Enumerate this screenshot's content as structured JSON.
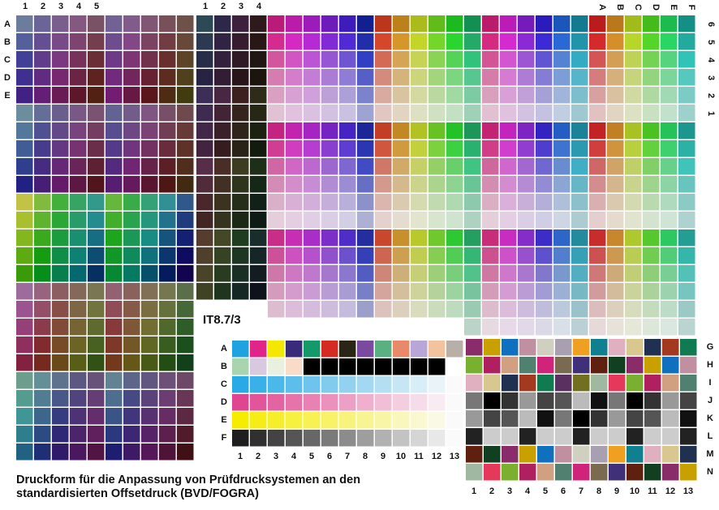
{
  "top_left_columns": [
    "1",
    "2",
    "3",
    "4",
    "5"
  ],
  "top_middle_columns": [
    "1",
    "2",
    "3",
    "4"
  ],
  "top_right_columns": [
    "A",
    "B",
    "C",
    "D",
    "E",
    "F"
  ],
  "left_rows": [
    "A",
    "B",
    "C",
    "D",
    "E"
  ],
  "right_rows": [
    "6",
    "5",
    "4",
    "3",
    "2",
    "1"
  ],
  "target_name": "IT8.7/3",
  "target_rows": [
    "A",
    "B",
    "C",
    "D",
    "E",
    "F"
  ],
  "target_columns": [
    "1",
    "2",
    "3",
    "4",
    "5",
    "6",
    "7",
    "8",
    "9",
    "10",
    "11",
    "12",
    "13"
  ],
  "side_rows": [
    "G",
    "H",
    "I",
    "J",
    "K",
    "L",
    "M",
    "N"
  ],
  "side_columns": [
    "1",
    "2",
    "3",
    "4",
    "5",
    "6",
    "7",
    "8",
    "9",
    "10",
    "11",
    "12",
    "13"
  ],
  "caption": [
    "Druckform für die Anpassung von Prüfdrucksystemen an den",
    "standardisierten Offsetdruck (BVD/FOGRA)"
  ]
}
